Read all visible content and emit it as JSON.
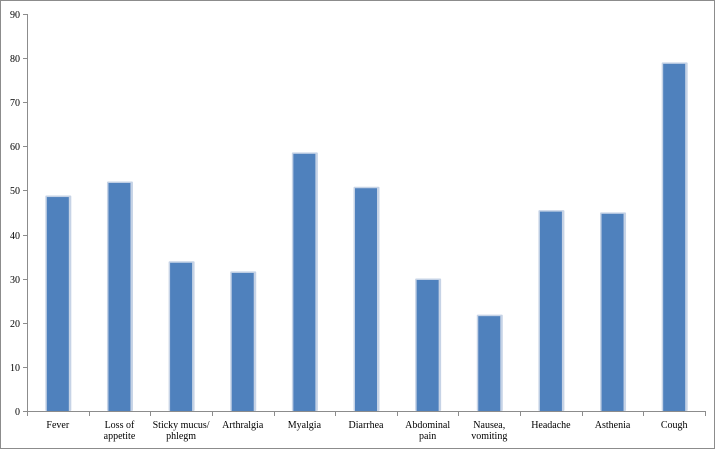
{
  "chart_data": {
    "type": "bar",
    "title": "",
    "xlabel": "",
    "ylabel": "",
    "categories": [
      [
        "Fever"
      ],
      [
        "Loss of",
        "appetite"
      ],
      [
        "Sticky mucus/",
        "phlegm"
      ],
      [
        "Arthralgia"
      ],
      [
        "Myalgia"
      ],
      [
        "Diarrhea"
      ],
      [
        "Abdominal",
        "pain"
      ],
      [
        "Nausea,",
        "vomiting"
      ],
      [
        "Headache"
      ],
      [
        "Asthenia"
      ],
      [
        "Cough"
      ]
    ],
    "values": [
      48.5,
      51.7,
      33.6,
      31.3,
      58.3,
      50.5,
      29.7,
      21.5,
      45.2,
      44.7,
      78.7
    ],
    "ylim": [
      0,
      90
    ],
    "yticks": [
      0,
      10,
      20,
      30,
      40,
      50,
      60,
      70,
      80,
      90
    ],
    "grid": false,
    "legend": "none",
    "colors": {
      "bar": "#4f81bd",
      "bar_shadow": "#c6d3e6",
      "axis": "#8c8c8c"
    }
  }
}
